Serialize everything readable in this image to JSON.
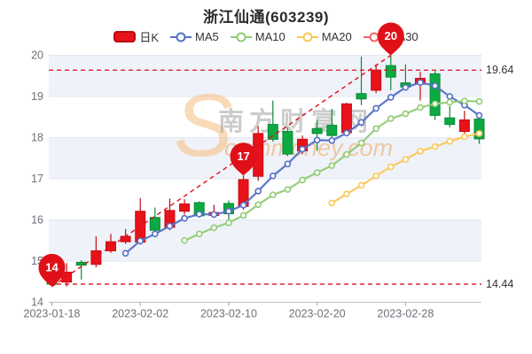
{
  "title": "浙江仙通(603239)",
  "legend": [
    {
      "label": "日K",
      "type": "candle",
      "color": "#E8121A"
    },
    {
      "label": "MA5",
      "type": "line",
      "color": "#5470C6"
    },
    {
      "label": "MA10",
      "type": "line",
      "color": "#91CC75"
    },
    {
      "label": "MA20",
      "type": "line",
      "color": "#FAC858"
    },
    {
      "label": "MA30",
      "type": "line",
      "color": "#EE6666"
    }
  ],
  "watermark": {
    "big_s": "S",
    "cn": "南方财富网",
    "en": "outhmoney.com",
    "s_color": "#F6C28B",
    "cn_color": "#9B9B9B",
    "en_color": "#F0A050"
  },
  "chart_data": {
    "type": "candlestick",
    "up_color": "#E8121A",
    "up_border": "#C40D14",
    "down_color": "#0DA942",
    "down_border": "#0A8A35",
    "accent_red": "#E01019",
    "y_axis": {
      "min": 14,
      "max": 20,
      "ticks": [
        14,
        15,
        16,
        17,
        18,
        19,
        20
      ]
    },
    "x_ticks": [
      {
        "label": "2023-01-18",
        "index": 0
      },
      {
        "label": "2023-02-02",
        "index": 6
      },
      {
        "label": "2023-02-10",
        "index": 12
      },
      {
        "label": "2023-02-20",
        "index": 18
      },
      {
        "label": "2023-02-28",
        "index": 24
      }
    ],
    "candles": [
      [
        14.58,
        14.6,
        14.38,
        14.44
      ],
      [
        14.49,
        14.95,
        14.38,
        14.73
      ],
      [
        14.97,
        15.02,
        14.55,
        14.9
      ],
      [
        14.92,
        15.6,
        14.85,
        15.25
      ],
      [
        15.25,
        15.66,
        15.2,
        15.47
      ],
      [
        15.47,
        15.78,
        15.42,
        15.6
      ],
      [
        15.46,
        16.53,
        15.4,
        16.21
      ],
      [
        16.06,
        16.3,
        15.68,
        15.75
      ],
      [
        15.82,
        16.52,
        15.75,
        16.23
      ],
      [
        16.21,
        16.5,
        16.13,
        16.39
      ],
      [
        16.42,
        16.45,
        16.06,
        16.1
      ],
      [
        16.11,
        16.37,
        16.05,
        16.18
      ],
      [
        16.4,
        16.47,
        16.0,
        16.15
      ],
      [
        16.33,
        17.08,
        16.25,
        16.98
      ],
      [
        17.06,
        18.28,
        16.95,
        18.1
      ],
      [
        18.32,
        18.9,
        17.9,
        17.96
      ],
      [
        18.15,
        18.25,
        17.55,
        17.6
      ],
      [
        17.68,
        18.05,
        17.6,
        17.96
      ],
      [
        18.22,
        18.43,
        17.68,
        18.1
      ],
      [
        18.3,
        18.7,
        18.0,
        18.05
      ],
      [
        18.12,
        18.85,
        18.05,
        18.82
      ],
      [
        19.07,
        19.97,
        18.79,
        18.94
      ],
      [
        19.15,
        19.78,
        19.08,
        19.64
      ],
      [
        19.75,
        20.0,
        19.15,
        19.47
      ],
      [
        19.33,
        19.78,
        19.18,
        19.23
      ],
      [
        19.3,
        19.6,
        18.9,
        19.44
      ],
      [
        19.55,
        19.62,
        18.43,
        18.54
      ],
      [
        18.48,
        18.77,
        18.25,
        18.32
      ],
      [
        18.15,
        18.65,
        18.1,
        18.43
      ],
      [
        18.45,
        18.48,
        17.85,
        17.97
      ]
    ],
    "series": [
      {
        "name": "MA5",
        "color": "#5470C6",
        "start_index": 5,
        "values": [
          15.19,
          15.49,
          15.66,
          15.85,
          16.04,
          16.14,
          16.13,
          16.21,
          16.36,
          16.7,
          17.07,
          17.36,
          17.72,
          17.94,
          17.93,
          18.11,
          18.37,
          18.71,
          18.98,
          19.22,
          19.34,
          19.26,
          19.0,
          18.79,
          18.54
        ]
      },
      {
        "name": "MA10",
        "color": "#91CC75",
        "start_index": 9,
        "values": [
          15.5,
          15.66,
          15.81,
          15.93,
          16.11,
          16.37,
          16.61,
          16.74,
          16.97,
          17.15,
          17.32,
          17.59,
          17.87,
          18.22,
          18.46,
          18.58,
          18.73,
          18.82,
          18.86,
          18.89,
          18.88
        ]
      },
      {
        "name": "MA20",
        "color": "#FAC858",
        "start_index": 19,
        "values": [
          16.41,
          16.63,
          16.84,
          17.07,
          17.29,
          17.47,
          17.67,
          17.78,
          17.91,
          18.02,
          18.1
        ]
      }
    ],
    "marklines": [
      {
        "value": 19.64,
        "label": "19.64"
      },
      {
        "value": 14.44,
        "label": "14.44"
      }
    ],
    "markers": [
      {
        "label": "14",
        "index": 0,
        "price": 14.38
      },
      {
        "label": "17",
        "index": 13,
        "price": 17.08
      },
      {
        "label": "20",
        "index": 23,
        "price": 20.0
      }
    ],
    "trendline": {
      "from_index": 0,
      "from_price": 14.38,
      "to_index": 23,
      "to_price": 20.0
    }
  }
}
